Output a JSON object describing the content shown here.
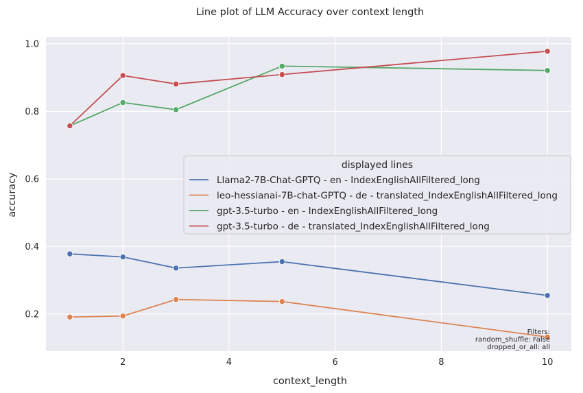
{
  "chart_data": {
    "type": "line",
    "title": "Line plot of LLM Accuracy over context length",
    "xlabel": "context_length",
    "ylabel": "accuracy",
    "xlim": [
      0.55,
      10.45
    ],
    "ylim": [
      0.09,
      1.02
    ],
    "xticks": [
      2,
      4,
      6,
      8,
      10
    ],
    "yticks": [
      0.2,
      0.4,
      0.6,
      0.8,
      1.0
    ],
    "grid": true,
    "legend": {
      "title": "displayed lines",
      "placement": "center-right"
    },
    "series": [
      {
        "name": "Llama2-7B-Chat-GPTQ - en - IndexEnglishAllFiltered_long",
        "color": "#4c72b0",
        "x": [
          1,
          2,
          3,
          5,
          10
        ],
        "y": [
          0.378,
          0.369,
          0.336,
          0.355,
          0.255
        ]
      },
      {
        "name": "leo-hessianai-7B-chat-GPTQ - de - translated_IndexEnglishAllFiltered_long",
        "color": "#dd8452",
        "x": [
          1,
          2,
          3,
          5,
          10
        ],
        "y": [
          0.191,
          0.194,
          0.243,
          0.237,
          0.132
        ]
      },
      {
        "name": "gpt-3.5-turbo - en - IndexEnglishAllFiltered_long",
        "color": "#55a868",
        "x": [
          1,
          2,
          3,
          5,
          10
        ],
        "y": [
          0.757,
          0.826,
          0.805,
          0.934,
          0.921
        ]
      },
      {
        "name": "gpt-3.5-turbo - de - translated_IndexEnglishAllFiltered_long",
        "color": "#c44e52",
        "x": [
          1,
          2,
          3,
          5,
          10
        ],
        "y": [
          0.757,
          0.906,
          0.881,
          0.909,
          0.978
        ]
      }
    ],
    "annotation": [
      "Filters:",
      "random_shuffle: False",
      "dropped_or_all: all"
    ]
  }
}
